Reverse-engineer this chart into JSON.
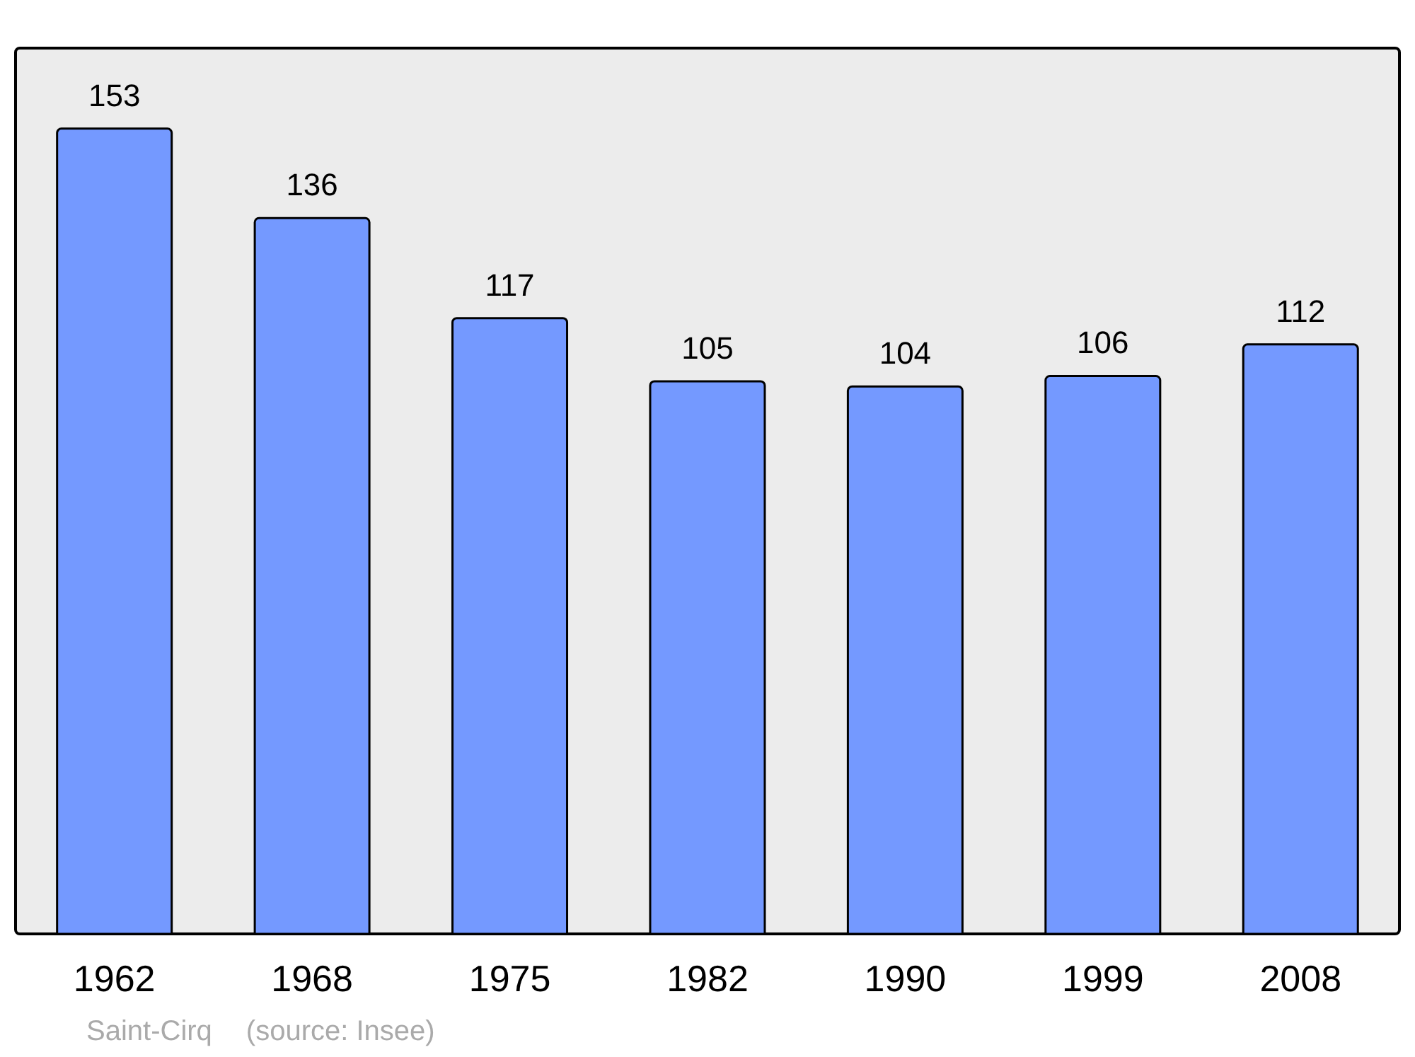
{
  "chart_data": {
    "type": "bar",
    "categories": [
      "1962",
      "1968",
      "1975",
      "1982",
      "1990",
      "1999",
      "2008"
    ],
    "values": [
      153,
      136,
      117,
      105,
      104,
      106,
      112
    ],
    "color": "#7499ff",
    "data_labels": true,
    "annotations": [
      "Saint-Cirq",
      "(source: Insee)"
    ]
  }
}
